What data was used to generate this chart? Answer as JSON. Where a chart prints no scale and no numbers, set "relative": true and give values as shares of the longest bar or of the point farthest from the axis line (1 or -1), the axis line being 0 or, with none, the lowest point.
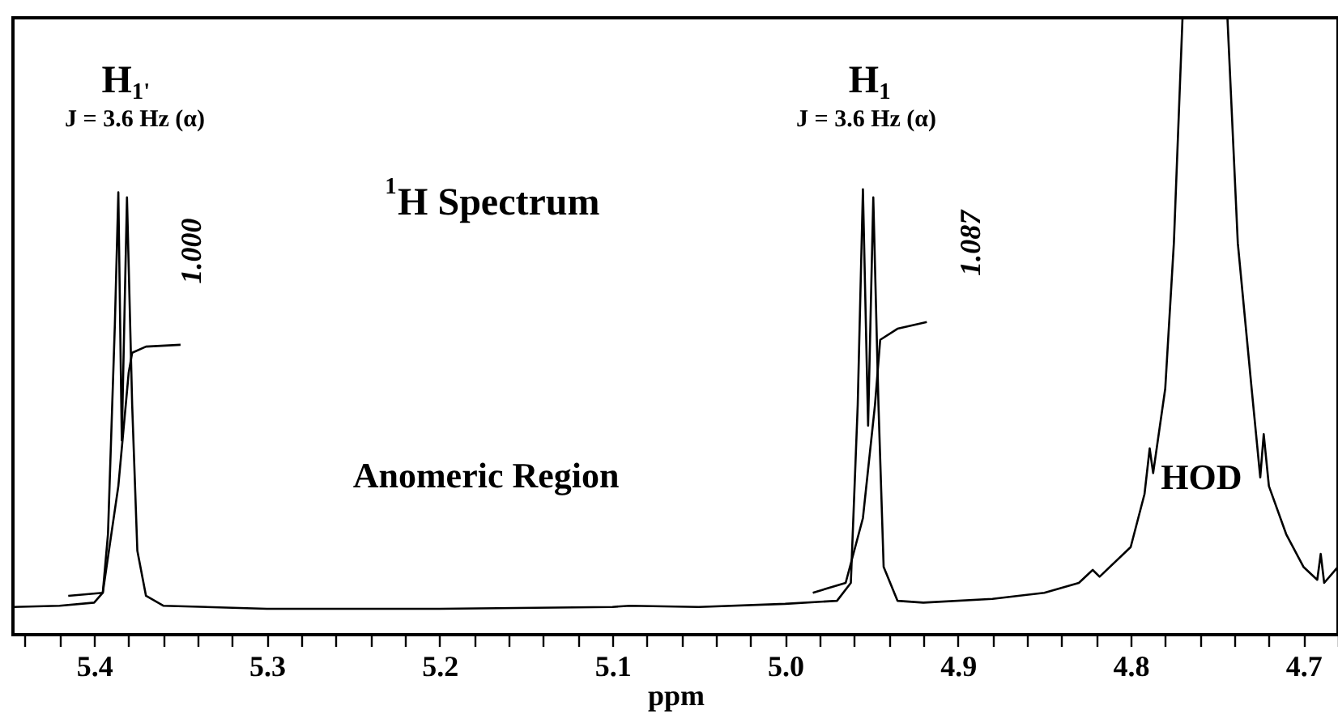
{
  "chart_data": {
    "type": "line",
    "relative": true,
    "xlabel": "ppm",
    "xlim": [
      5.447,
      4.68
    ],
    "xticks": [
      {
        "value": 5.44,
        "label": null
      },
      {
        "value": 5.42,
        "label": null
      },
      5.4,
      {
        "value": 5.38,
        "label": null
      },
      {
        "value": 5.36,
        "label": null
      },
      {
        "value": 5.34,
        "label": null
      },
      {
        "value": 5.32,
        "label": null
      },
      5.3,
      {
        "value": 5.28,
        "label": null
      },
      {
        "value": 5.26,
        "label": null
      },
      {
        "value": 5.24,
        "label": null
      },
      {
        "value": 5.22,
        "label": null
      },
      5.2,
      {
        "value": 5.18,
        "label": null
      },
      {
        "value": 5.16,
        "label": null
      },
      {
        "value": 5.14,
        "label": null
      },
      {
        "value": 5.12,
        "label": null
      },
      5.1,
      {
        "value": 5.08,
        "label": null
      },
      {
        "value": 5.06,
        "label": null
      },
      {
        "value": 5.04,
        "label": null
      },
      {
        "value": 5.02,
        "label": null
      },
      {
        "value": 5.0,
        "label": "5.0"
      },
      {
        "value": 4.98,
        "label": null
      },
      {
        "value": 4.96,
        "label": null
      },
      {
        "value": 4.94,
        "label": null
      },
      {
        "value": 4.92,
        "label": null
      },
      4.9,
      {
        "value": 4.88,
        "label": null
      },
      {
        "value": 4.86,
        "label": null
      },
      {
        "value": 4.84,
        "label": null
      },
      {
        "value": 4.82,
        "label": null
      },
      4.8,
      {
        "value": 4.78,
        "label": null
      },
      {
        "value": 4.76,
        "label": null
      },
      {
        "value": 4.74,
        "label": null
      },
      {
        "value": 4.72,
        "label": null
      },
      4.7,
      {
        "value": 4.68,
        "label": null
      }
    ],
    "tick_labels": "x",
    "grid": false,
    "marker": "none",
    "line_style": "solid",
    "series": [
      {
        "color": "#000000",
        "x": [
          5.447,
          5.42,
          5.4,
          5.395,
          5.392,
          5.388,
          5.386,
          5.384,
          5.381,
          5.378,
          5.375,
          5.37,
          5.36,
          5.3,
          5.2,
          5.1,
          5.09,
          5.05,
          5.0,
          4.97,
          4.962,
          4.958,
          4.955,
          4.952,
          4.949,
          4.946,
          4.943,
          4.935,
          4.92,
          4.88,
          4.85,
          4.83,
          4.822,
          4.818,
          4.8,
          4.792,
          4.789,
          4.787,
          4.78,
          4.775,
          4.77,
          4.757,
          4.744,
          4.738,
          4.73,
          4.725,
          4.723,
          4.72,
          4.71,
          4.7,
          4.692,
          4.69,
          4.688,
          4.68
        ],
        "values": [
          0.045,
          0.047,
          0.052,
          0.068,
          0.163,
          0.504,
          0.717,
          0.315,
          0.709,
          0.373,
          0.136,
          0.063,
          0.047,
          0.042,
          0.042,
          0.045,
          0.047,
          0.045,
          0.05,
          0.055,
          0.084,
          0.373,
          0.722,
          0.339,
          0.709,
          0.373,
          0.11,
          0.055,
          0.052,
          0.058,
          0.068,
          0.084,
          0.105,
          0.094,
          0.142,
          0.228,
          0.302,
          0.262,
          0.399,
          0.635,
          1.0,
          null,
          1.0,
          0.635,
          0.399,
          0.255,
          0.325,
          0.241,
          0.163,
          0.11,
          0.089,
          0.131,
          0.084,
          0.11
        ]
      },
      {
        "color": "#000000",
        "x": [
          5.415,
          5.395,
          5.386,
          5.38,
          5.378,
          5.37,
          5.35
        ],
        "values": [
          0.063,
          0.068,
          0.241,
          0.425,
          0.457,
          0.467,
          0.47
        ]
      },
      {
        "color": "#000000",
        "x": [
          4.984,
          4.965,
          4.955,
          4.948,
          4.945,
          4.935,
          4.918
        ],
        "values": [
          0.068,
          0.084,
          0.189,
          0.373,
          0.478,
          0.496,
          0.507
        ]
      }
    ],
    "annotations": [
      "H$_{1'}$",
      "J = 3.6 Hz (α)",
      "1.000",
      "H$_{1}$",
      "J = 3.6 Hz (α)",
      "1.087",
      "HOD",
      "$^{1}$H Spectrum",
      "Anomeric Region"
    ]
  }
}
